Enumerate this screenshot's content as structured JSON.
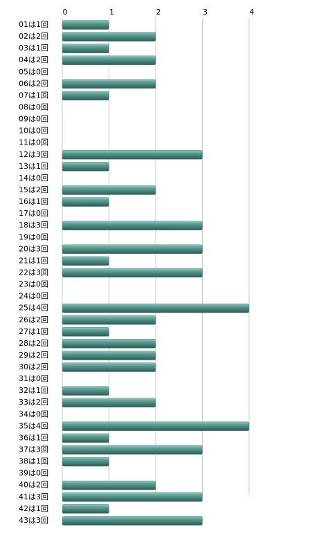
{
  "chart_data": {
    "type": "bar",
    "orientation": "horizontal",
    "categories": [
      "01は1回",
      "02は2回",
      "03は1回",
      "04は2回",
      "05は0回",
      "06は2回",
      "07は1回",
      "08は0回",
      "09は0回",
      "10は0回",
      "11は0回",
      "12は3回",
      "13は1回",
      "14は0回",
      "15は2回",
      "16は1回",
      "17は0回",
      "18は3回",
      "19は0回",
      "20は3回",
      "21は1回",
      "22は3回",
      "23は0回",
      "24は0回",
      "25は4回",
      "26は2回",
      "27は1回",
      "28は2回",
      "29は2回",
      "30は2回",
      "31は0回",
      "32は1回",
      "33は2回",
      "34は0回",
      "35は4回",
      "36は1回",
      "37は3回",
      "38は1回",
      "39は0回",
      "40は2回",
      "41は3回",
      "42は1回",
      "43は3回"
    ],
    "values": [
      1,
      2,
      1,
      2,
      0,
      2,
      1,
      0,
      0,
      0,
      0,
      3,
      1,
      0,
      2,
      1,
      0,
      3,
      0,
      3,
      1,
      3,
      0,
      0,
      4,
      2,
      1,
      2,
      2,
      2,
      0,
      1,
      2,
      0,
      4,
      1,
      3,
      1,
      0,
      2,
      3,
      1,
      3
    ],
    "color": "#4f8f86",
    "xlim": [
      0,
      4
    ],
    "xticks": [
      0,
      1,
      2,
      3,
      4
    ],
    "grid": true
  }
}
